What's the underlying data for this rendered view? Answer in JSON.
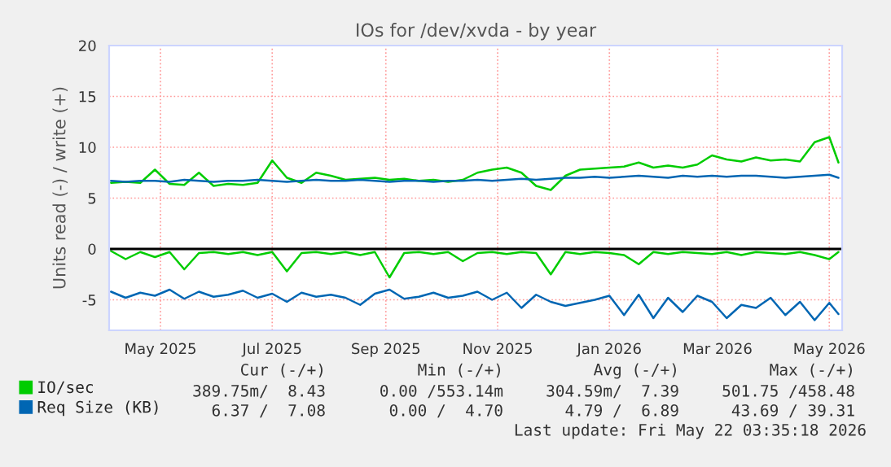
{
  "chart_data": {
    "type": "line",
    "title": "IOs for /dev/xvda - by year",
    "ylabel": "Units read (-) / write (+)",
    "x": [
      "2025-04-18",
      "2025-04-26",
      "2025-05-04",
      "2025-05-12",
      "2025-05-20",
      "2025-05-28",
      "2025-06-05",
      "2025-06-13",
      "2025-06-21",
      "2025-06-29",
      "2025-07-07",
      "2025-07-15",
      "2025-07-23",
      "2025-07-31",
      "2025-08-08",
      "2025-08-16",
      "2025-08-24",
      "2025-09-01",
      "2025-09-09",
      "2025-09-17",
      "2025-09-25",
      "2025-10-03",
      "2025-10-11",
      "2025-10-19",
      "2025-10-27",
      "2025-11-04",
      "2025-11-12",
      "2025-11-20",
      "2025-11-28",
      "2025-12-06",
      "2025-12-14",
      "2025-12-22",
      "2025-12-30",
      "2026-01-07",
      "2026-01-15",
      "2026-01-23",
      "2026-01-31",
      "2026-02-08",
      "2026-02-16",
      "2026-02-24",
      "2026-03-04",
      "2026-03-12",
      "2026-03-20",
      "2026-03-28",
      "2026-04-05",
      "2026-04-13",
      "2026-04-21",
      "2026-04-29",
      "2026-05-07",
      "2026-05-15",
      "2026-05-20"
    ],
    "series": [
      {
        "name": "IO/sec",
        "color": "#00cc00",
        "values": [
          6.5,
          6.6,
          6.5,
          7.8,
          6.4,
          6.3,
          7.5,
          6.2,
          6.4,
          6.3,
          6.5,
          8.7,
          7.0,
          6.5,
          7.5,
          7.2,
          6.8,
          6.9,
          7.0,
          6.8,
          6.9,
          6.7,
          6.8,
          6.6,
          6.8,
          7.5,
          7.8,
          8.0,
          7.5,
          6.2,
          5.8,
          7.2,
          7.8,
          7.9,
          8.0,
          8.1,
          8.5,
          8.0,
          8.2,
          8.0,
          8.3,
          9.2,
          8.8,
          8.6,
          9.0,
          8.7,
          8.8,
          8.6,
          10.5,
          11.0,
          8.5
        ]
      },
      {
        "color": "#00cc00",
        "values": [
          -0.2,
          -1.0,
          -0.3,
          -0.8,
          -0.3,
          -2.0,
          -0.4,
          -0.3,
          -0.5,
          -0.3,
          -0.6,
          -0.3,
          -2.2,
          -0.4,
          -0.3,
          -0.5,
          -0.3,
          -0.6,
          -0.3,
          -2.8,
          -0.4,
          -0.3,
          -0.5,
          -0.3,
          -1.2,
          -0.4,
          -0.3,
          -0.5,
          -0.3,
          -0.4,
          -2.5,
          -0.3,
          -0.5,
          -0.3,
          -0.4,
          -0.6,
          -1.5,
          -0.3,
          -0.5,
          -0.3,
          -0.4,
          -0.5,
          -0.3,
          -0.6,
          -0.3,
          -0.4,
          -0.5,
          -0.3,
          -0.6,
          -1.0,
          -0.3
        ]
      },
      {
        "name": "Req Size (KB)",
        "color": "#0066b3",
        "values": [
          6.7,
          6.6,
          6.7,
          6.7,
          6.6,
          6.8,
          6.7,
          6.6,
          6.7,
          6.7,
          6.8,
          6.7,
          6.6,
          6.7,
          6.8,
          6.7,
          6.7,
          6.8,
          6.7,
          6.6,
          6.7,
          6.7,
          6.6,
          6.7,
          6.7,
          6.8,
          6.7,
          6.8,
          6.9,
          6.8,
          6.9,
          7.0,
          7.0,
          7.1,
          7.0,
          7.1,
          7.2,
          7.1,
          7.0,
          7.2,
          7.1,
          7.2,
          7.1,
          7.2,
          7.2,
          7.1,
          7.0,
          7.1,
          7.2,
          7.3,
          7.0
        ]
      },
      {
        "color": "#0066b3",
        "values": [
          -4.2,
          -4.8,
          -4.3,
          -4.6,
          -4.0,
          -4.9,
          -4.2,
          -4.7,
          -4.5,
          -4.1,
          -4.8,
          -4.4,
          -5.2,
          -4.3,
          -4.7,
          -4.5,
          -4.8,
          -5.5,
          -4.4,
          -4.0,
          -4.9,
          -4.7,
          -4.3,
          -4.8,
          -4.6,
          -4.2,
          -5.0,
          -4.3,
          -5.8,
          -4.5,
          -5.2,
          -5.6,
          -5.3,
          -5.0,
          -4.6,
          -6.5,
          -4.5,
          -6.8,
          -4.8,
          -6.2,
          -4.6,
          -5.2,
          -6.8,
          -5.5,
          -5.8,
          -4.8,
          -6.5,
          -5.2,
          -7.0,
          -5.3,
          -6.4
        ]
      }
    ],
    "xlim": [
      "2025-04-17",
      "2026-05-22"
    ],
    "xticks": [
      {
        "value": "2025-05-15",
        "label": "May 2025"
      },
      {
        "value": "2025-07-15",
        "label": "Jul 2025"
      },
      {
        "value": "2025-09-15",
        "label": "Sep 2025"
      },
      {
        "value": "2025-11-15",
        "label": "Nov 2025"
      },
      {
        "value": "2026-01-15",
        "label": "Jan 2026"
      },
      {
        "value": "2026-03-15",
        "label": "Mar 2026"
      },
      {
        "value": "2026-05-15",
        "label": "May 2026"
      }
    ],
    "ylim": [
      -8,
      20
    ],
    "yticks": [
      -5,
      0,
      5,
      10,
      15,
      20
    ],
    "ref_lines": [
      {
        "axis": "y",
        "value": 0,
        "color": "#000000"
      }
    ],
    "grid": true,
    "legend": "bottom",
    "annotations": [
      "Cur (-/+)",
      "Min (-/+)",
      "Avg (-/+)",
      "Max (-/+)",
      "389.75m/  8.43",
      "0.00 /553.14m",
      "304.59m/  7.39",
      "501.75 /458.48",
      "6.37 /  7.08",
      "0.00 /  4.70",
      "4.79 /  6.89",
      "43.69 / 39.31",
      "Last update: Fri May 22 03:35:18 2026"
    ]
  }
}
